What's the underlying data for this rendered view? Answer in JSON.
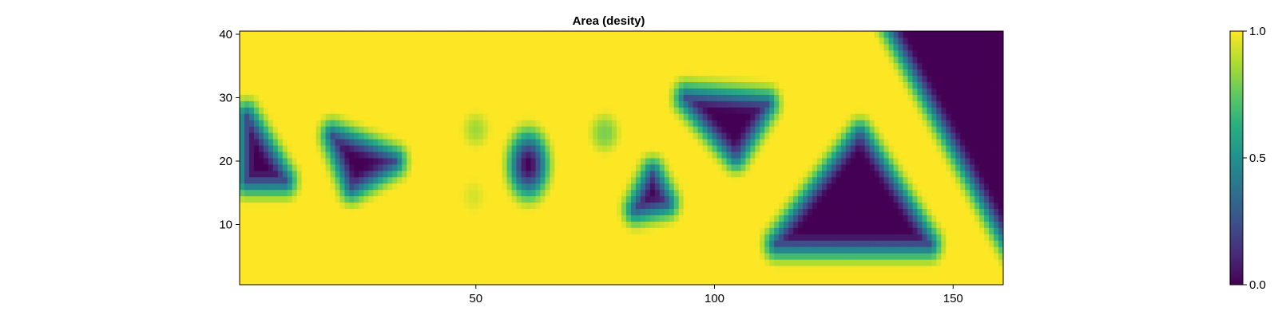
{
  "chart_data": {
    "type": "heatmap",
    "title": "Area (desity)",
    "xlabel": "",
    "ylabel": "",
    "xlim": [
      0.5,
      160.5
    ],
    "ylim": [
      0.5,
      40.5
    ],
    "grid": [
      160,
      40
    ],
    "x_ticks": [
      50,
      100,
      150
    ],
    "y_ticks": [
      10,
      20,
      30,
      40
    ],
    "colorbar": {
      "range": [
        0.0,
        1.0
      ],
      "ticks": [
        "0.0",
        "0.5",
        "1.0"
      ],
      "colormap": "viridis",
      "placement": "right"
    },
    "background_value": 1.0,
    "voids": [
      {
        "shape": "triangle",
        "vertices": [
          [
            2,
            27
          ],
          [
            2,
            17
          ],
          [
            10,
            17
          ]
        ],
        "value": 0.0
      },
      {
        "shape": "triangle",
        "vertices": [
          [
            20,
            24
          ],
          [
            33,
            20
          ],
          [
            24,
            16
          ]
        ],
        "value": 0.0
      },
      {
        "shape": "blob",
        "center": [
          61,
          19.5
        ],
        "radius": [
          3.2,
          4.0
        ],
        "value": 0.0
      },
      {
        "shape": "triangle",
        "vertices": [
          [
            87,
            18
          ],
          [
            83.5,
            12.5
          ],
          [
            90,
            13.5
          ]
        ],
        "value": 0.0
      },
      {
        "shape": "triangle",
        "vertices": [
          [
            94,
            30
          ],
          [
            111,
            29
          ],
          [
            104.5,
            21
          ]
        ],
        "value": 0.0
      },
      {
        "shape": "triangle",
        "vertices": [
          [
            130.5,
            24
          ],
          [
            113,
            7
          ],
          [
            145,
            7
          ]
        ],
        "value": 0.0
      },
      {
        "shape": "triangle",
        "vertices": [
          [
            136,
            43
          ],
          [
            183,
            43
          ],
          [
            183,
            -22
          ]
        ],
        "value": 0.0
      }
    ],
    "faint_spots": [
      {
        "center": [
          50,
          25
        ],
        "radius": 2.0,
        "value": 0.85
      },
      {
        "center": [
          77,
          24.5
        ],
        "radius": 2.4,
        "value": 0.8
      },
      {
        "center": [
          49.5,
          14.5
        ],
        "radius": 1.6,
        "value": 0.93
      }
    ]
  }
}
